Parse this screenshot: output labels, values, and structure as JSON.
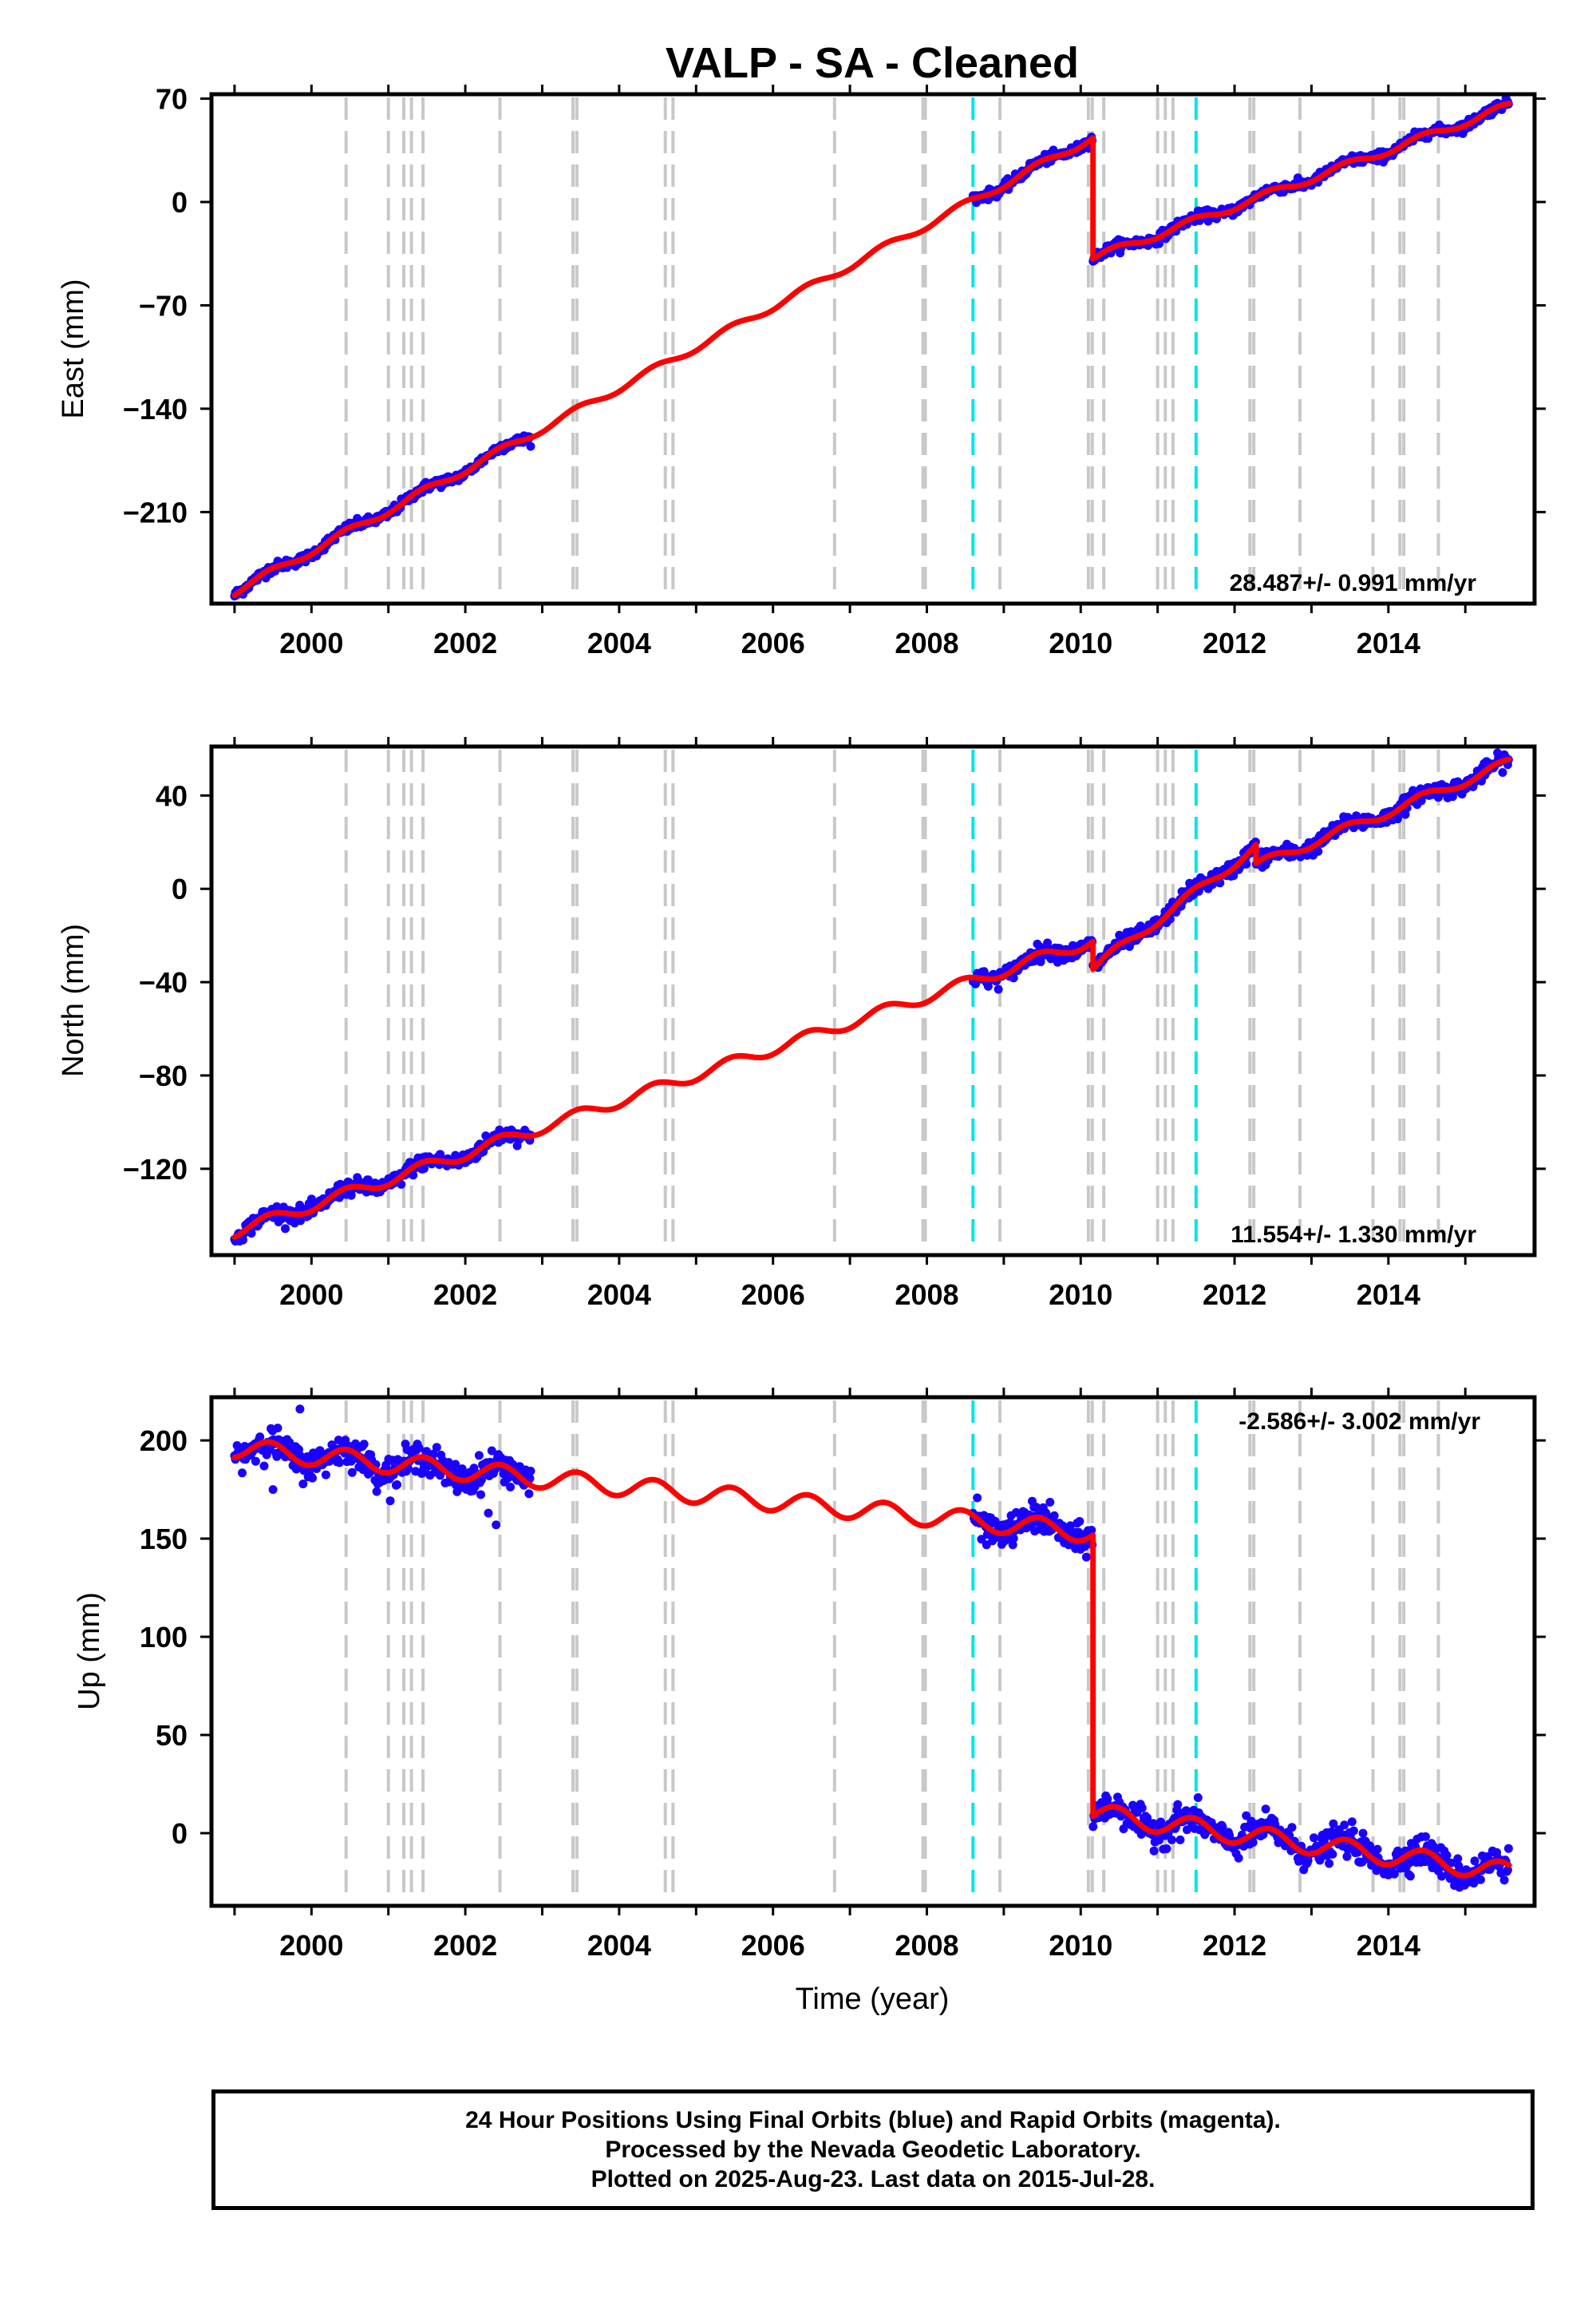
{
  "title": "VALP  - SA - Cleaned",
  "xlabel": "Time (year)",
  "colors": {
    "fit": "#ff0000",
    "final_orbits": "#1a00ff",
    "rapid_orbits": "#ff00ff",
    "equipment_change": "#c8c8c8",
    "earthquake": "#00e5e5"
  },
  "footer": {
    "line1": "24 Hour Positions Using Final Orbits (blue) and Rapid Orbits (magenta).",
    "line2": "Processed by the Nevada Geodetic Laboratory.",
    "line3": "Plotted on 2025-Aug-23. Last data on 2015-Jul-28."
  },
  "chart_data": [
    {
      "type": "scatter",
      "ylabel": "East (mm)",
      "rate_label": "28.487+/- 0.991 mm/yr",
      "xlim": [
        1998.7,
        2015.9
      ],
      "ylim": [
        -272,
        73
      ],
      "xticks": [
        2000,
        2002,
        2004,
        2006,
        2008,
        2010,
        2012,
        2014
      ],
      "yticks": [
        70,
        0,
        -70,
        -140,
        -210
      ],
      "equipment_changes": [
        2000.45,
        2001.0,
        2001.2,
        2001.3,
        2001.45,
        2002.45,
        2003.4,
        2003.45,
        2004.6,
        2004.7,
        2006.8,
        2007.95,
        2007.98,
        2008.95,
        2010.1,
        2010.15,
        2010.3,
        2011.0,
        2011.1,
        2011.2,
        2012.2,
        2012.25,
        2012.85,
        2013.8,
        2014.15,
        2014.2,
        2014.65
      ],
      "earthquakes": [
        2008.6,
        2011.5
      ],
      "data_segments": [
        [
          1999.0,
          2002.85
        ],
        [
          2008.6,
          2010.15
        ],
        [
          2010.15,
          2015.57
        ]
      ],
      "trend": [
        {
          "x0": 1999.0,
          "x1": 2010.16,
          "y0": -264,
          "y1": 44,
          "amp": 2.5
        },
        {
          "x0": 2010.16,
          "x1": 2015.57,
          "y0": -38,
          "y1": 65,
          "amp": 2.5
        }
      ],
      "extras": [],
      "noise": 3
    },
    {
      "type": "scatter",
      "ylabel": "North (mm)",
      "rate_label": "11.554+/- 1.330 mm/yr",
      "xlim": [
        1998.7,
        2015.9
      ],
      "ylim": [
        -157,
        61
      ],
      "xticks": [
        2000,
        2002,
        2004,
        2006,
        2008,
        2010,
        2012,
        2014
      ],
      "yticks": [
        40,
        0,
        -40,
        -80,
        -120
      ],
      "equipment_changes": [
        2000.45,
        2001.0,
        2001.2,
        2001.3,
        2001.45,
        2002.45,
        2003.4,
        2003.45,
        2004.6,
        2004.7,
        2006.8,
        2007.95,
        2007.98,
        2008.95,
        2010.1,
        2010.15,
        2010.3,
        2011.0,
        2011.1,
        2011.2,
        2012.2,
        2012.25,
        2012.85,
        2013.8,
        2014.15,
        2014.2,
        2014.65
      ],
      "earthquakes": [
        2008.6,
        2011.5
      ],
      "data_segments": [
        [
          1999.0,
          2002.85
        ],
        [
          2008.6,
          2010.15
        ],
        [
          2010.15,
          2015.57
        ]
      ],
      "trend": [
        {
          "x0": 1999.0,
          "x1": 2010.16,
          "y0": -147,
          "y1": -22,
          "amp": 2.5
        },
        {
          "x0": 2010.16,
          "x1": 2012.28,
          "y0": -34,
          "y1": 18,
          "amp": 2.0
        },
        {
          "x0": 2012.28,
          "x1": 2015.57,
          "y0": 10,
          "y1": 54,
          "amp": 2.0
        }
      ],
      "extras": [],
      "noise": 3
    },
    {
      "type": "scatter",
      "ylabel": "Up (mm)",
      "rate_label": "-2.586+/- 3.002 mm/yr",
      "xlim": [
        1998.7,
        2015.9
      ],
      "ylim": [
        -37,
        222
      ],
      "xticks": [
        2000,
        2002,
        2004,
        2006,
        2008,
        2010,
        2012,
        2014
      ],
      "yticks": [
        200,
        150,
        100,
        50,
        0
      ],
      "equipment_changes": [
        2000.45,
        2001.0,
        2001.2,
        2001.3,
        2001.45,
        2002.45,
        2003.4,
        2003.45,
        2004.6,
        2004.7,
        2006.8,
        2007.95,
        2007.98,
        2008.95,
        2010.1,
        2010.15,
        2010.3,
        2011.0,
        2011.1,
        2011.2,
        2012.2,
        2012.25,
        2012.85,
        2013.8,
        2014.15,
        2014.2,
        2014.65
      ],
      "earthquakes": [
        2008.6,
        2011.5
      ],
      "data_segments": [
        [
          1999.0,
          2002.85
        ],
        [
          2008.6,
          2010.15
        ],
        [
          2010.15,
          2015.57
        ]
      ],
      "trend": [
        {
          "x0": 1999.0,
          "x1": 2010.16,
          "y0": 196,
          "y1": 153,
          "amp": 5
        },
        {
          "x0": 2010.16,
          "x1": 2015.57,
          "y0": 10,
          "y1": -20,
          "amp": 5
        }
      ],
      "extras": [
        [
          1999.85,
          216
        ],
        [
          2002.3,
          163
        ],
        [
          2002.4,
          157
        ],
        [
          1999.5,
          175
        ]
      ],
      "noise": 7
    }
  ]
}
